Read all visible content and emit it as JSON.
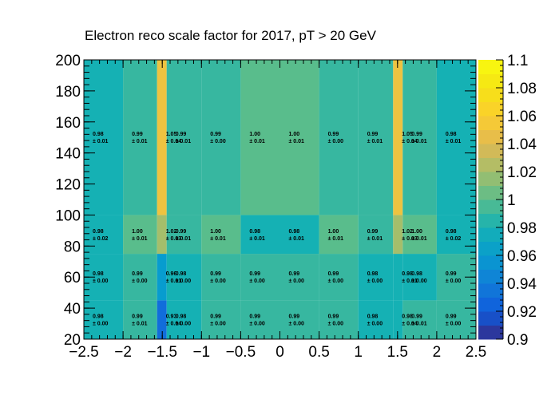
{
  "chart_data": {
    "type": "heatmap",
    "title": "Electron reco scale factor for 2017, pT > 20 GeV",
    "xlabel": "",
    "ylabel": "",
    "x_edges": [
      -2.5,
      -2.0,
      -1.566,
      -1.444,
      -1.0,
      -0.5,
      0.0,
      0.5,
      1.0,
      1.444,
      1.566,
      2.0,
      2.5
    ],
    "y_edges": [
      20,
      45,
      75,
      100,
      200
    ],
    "xlim": [
      -2.5,
      2.5
    ],
    "ylim": [
      20,
      200
    ],
    "x_ticks": [
      "−2.5",
      "−2",
      "−1.5",
      "−1",
      "−0.5",
      "0",
      "0.5",
      "1",
      "1.5",
      "2",
      "2.5"
    ],
    "y_ticks": [
      "20",
      "40",
      "60",
      "80",
      "100",
      "120",
      "140",
      "160",
      "180",
      "200"
    ],
    "colorbar": {
      "range": [
        0.9,
        1.1
      ],
      "ticks": [
        "0.9",
        "0.92",
        "0.94",
        "0.96",
        "0.98",
        "1",
        "1.02",
        "1.04",
        "1.06",
        "1.08",
        "1.1"
      ]
    },
    "rows": [
      {
        "values": [
          0.98,
          0.99,
          0.93,
          0.98,
          0.99,
          0.99,
          0.99,
          0.99,
          0.98,
          0.98,
          0.99,
          0.99
        ],
        "labels": [
          "0.98",
          "0.99",
          "0.93",
          "0.98",
          "0.99",
          "0.99",
          "0.99",
          "0.99",
          "0.98",
          "0.98",
          "0.99",
          "0.99"
        ],
        "errors": [
          "± 0.00",
          "± 0.01",
          "± 0.04",
          "± 0.00",
          "± 0.00",
          "± 0.00",
          "± 0.00",
          "± 0.00",
          "± 0.00",
          "± 0.04",
          "± 0.01",
          "± 0.00"
        ]
      },
      {
        "values": [
          0.98,
          0.99,
          0.96,
          0.98,
          0.99,
          0.99,
          0.99,
          0.99,
          0.98,
          0.98,
          0.98,
          0.99
        ],
        "labels": [
          "0.98",
          "0.99",
          "0.96",
          "0.98",
          "0.99",
          "0.99",
          "0.99",
          "0.99",
          "0.98",
          "0.98",
          "0.98",
          "0.99"
        ],
        "errors": [
          "± 0.00",
          "± 0.00",
          "± 0.01",
          "± 0.00",
          "± 0.00",
          "± 0.00",
          "± 0.00",
          "± 0.00",
          "± 0.00",
          "± 0.01",
          "± 0.00",
          "± 0.00"
        ]
      },
      {
        "values": [
          0.98,
          1.0,
          1.02,
          0.99,
          1.0,
          0.98,
          0.98,
          1.0,
          0.99,
          1.02,
          1.0,
          0.98
        ],
        "labels": [
          "0.98",
          "1.00",
          "1.02",
          "0.99",
          "1.00",
          "0.98",
          "0.98",
          "1.00",
          "0.99",
          "1.02",
          "1.00",
          "0.98"
        ],
        "errors": [
          "± 0.02",
          "± 0.01",
          "± 0.03",
          "± 0.01",
          "± 0.01",
          "± 0.01",
          "± 0.01",
          "± 0.01",
          "± 0.01",
          "± 0.03",
          "± 0.01",
          "± 0.02"
        ]
      },
      {
        "values": [
          0.98,
          0.99,
          1.05,
          0.99,
          0.99,
          1.0,
          1.0,
          0.99,
          0.99,
          1.05,
          0.99,
          0.98
        ],
        "labels": [
          "0.98",
          "0.99",
          "1.05",
          "0.99",
          "0.99",
          "1.00",
          "1.00",
          "0.99",
          "0.99",
          "1.05",
          "0.99",
          "0.98"
        ],
        "errors": [
          "± 0.01",
          "± 0.01",
          "± 0.04",
          "± 0.01",
          "± 0.00",
          "± 0.01",
          "± 0.01",
          "± 0.00",
          "± 0.01",
          "± 0.04",
          "± 0.01",
          "± 0.01"
        ]
      }
    ]
  }
}
